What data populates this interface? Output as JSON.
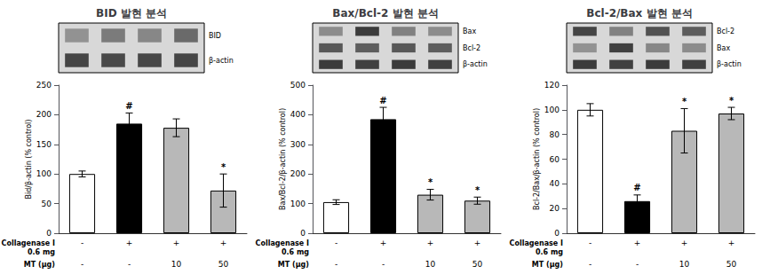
{
  "chart_data": [
    {
      "type": "bar",
      "title": "BID 발현 분석",
      "categories": [
        [
          "-",
          "-"
        ],
        [
          "+",
          "-"
        ],
        [
          "+",
          "10"
        ],
        [
          "+",
          "50"
        ]
      ],
      "category_labels": [
        "Collagenase I\n0.6 mg",
        "MT (μg)"
      ],
      "values": [
        100,
        185,
        178,
        72
      ],
      "errors": [
        5,
        18,
        15,
        28
      ],
      "colors": [
        "#ffffff",
        "#000000",
        "#b8b8b8",
        "#b8b8b8"
      ],
      "annotations": [
        null,
        "#",
        null,
        "*"
      ],
      "ylabel": "Bid/β-actin (% control)",
      "ylim": [
        0,
        250
      ],
      "yticks": [
        0,
        50,
        100,
        150,
        200,
        250
      ],
      "grid": false,
      "blot_labels": [
        "BID",
        "β-actin"
      ],
      "band_darkness": [
        [
          0.55,
          0.45,
          0.5,
          0.38
        ],
        [
          0.22,
          0.24,
          0.23,
          0.22
        ]
      ]
    },
    {
      "type": "bar",
      "title": "Bax/Bcl-2 발현 분석",
      "categories": [
        [
          "-",
          "-"
        ],
        [
          "+",
          "-"
        ],
        [
          "+",
          "10"
        ],
        [
          "+",
          "50"
        ]
      ],
      "category_labels": [
        "Collagenase I\n0.6 mg",
        "MT (μg)"
      ],
      "values": [
        105,
        385,
        130,
        110
      ],
      "errors": [
        8,
        40,
        18,
        12
      ],
      "colors": [
        "#ffffff",
        "#000000",
        "#b8b8b8",
        "#b8b8b8"
      ],
      "annotations": [
        null,
        "#",
        "*",
        "*"
      ],
      "ylabel": "Bax/Bcl-2/β-actin (% control)",
      "ylim": [
        0,
        500
      ],
      "yticks": [
        0,
        100,
        200,
        300,
        400,
        500
      ],
      "grid": false,
      "blot_labels": [
        "Bax",
        "Bcl-2",
        "β-actin"
      ],
      "band_darkness": [
        [
          0.52,
          0.18,
          0.48,
          0.52
        ],
        [
          0.3,
          0.32,
          0.3,
          0.32
        ],
        [
          0.18,
          0.2,
          0.18,
          0.2
        ]
      ]
    },
    {
      "type": "bar",
      "title": "Bcl-2/Bax 발현 분석",
      "categories": [
        [
          "-",
          "-"
        ],
        [
          "+",
          "-"
        ],
        [
          "+",
          "10"
        ],
        [
          "+",
          "50"
        ]
      ],
      "category_labels": [
        "Collagenase I\n0.6 mg",
        "MT (μg)"
      ],
      "values": [
        100,
        26,
        83,
        97
      ],
      "errors": [
        5,
        5,
        18,
        5
      ],
      "colors": [
        "#ffffff",
        "#000000",
        "#b8b8b8",
        "#b8b8b8"
      ],
      "annotations": [
        null,
        "#",
        "*",
        "*"
      ],
      "ylabel": "Bcl-2/Bax/β-actin (% control)",
      "ylim": [
        0,
        120
      ],
      "yticks": [
        0,
        20,
        40,
        60,
        80,
        100,
        120
      ],
      "grid": false,
      "blot_labels": [
        "Bcl-2",
        "Bax",
        "β-actin"
      ],
      "band_darkness": [
        [
          0.22,
          0.48,
          0.28,
          0.32
        ],
        [
          0.55,
          0.2,
          0.5,
          0.52
        ],
        [
          0.18,
          0.2,
          0.18,
          0.2
        ]
      ]
    }
  ]
}
